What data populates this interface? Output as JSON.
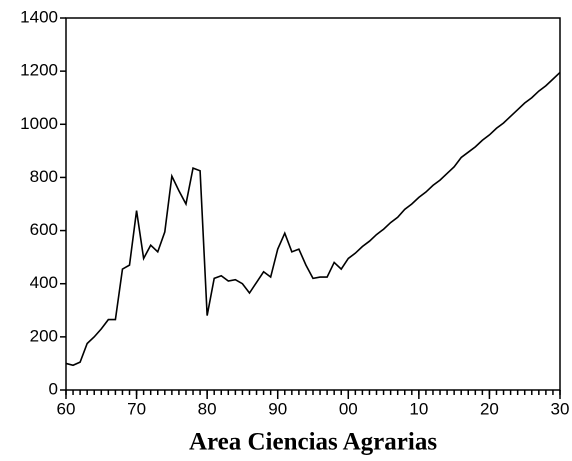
{
  "chart_data": {
    "type": "line",
    "xlabel": "Area Ciencias Agrarias",
    "x": [
      1960,
      1961,
      1962,
      1963,
      1964,
      1965,
      1966,
      1967,
      1968,
      1969,
      1970,
      1971,
      1972,
      1973,
      1974,
      1975,
      1976,
      1977,
      1978,
      1979,
      1980,
      1981,
      1982,
      1983,
      1984,
      1985,
      1986,
      1987,
      1988,
      1989,
      1990,
      1991,
      1992,
      1993,
      1994,
      1995,
      1996,
      1997,
      1998,
      1999,
      2000,
      2001,
      2002,
      2003,
      2004,
      2005,
      2006,
      2007,
      2008,
      2009,
      2010,
      2011,
      2012,
      2013,
      2014,
      2015,
      2016,
      2017,
      2018,
      2019,
      2020,
      2021,
      2022,
      2023,
      2024,
      2025,
      2026,
      2027,
      2028,
      2029,
      2030
    ],
    "values": [
      100,
      93,
      105,
      175,
      200,
      230,
      265,
      265,
      455,
      470,
      675,
      495,
      545,
      520,
      595,
      805,
      750,
      700,
      835,
      825,
      280,
      420,
      430,
      410,
      415,
      400,
      365,
      405,
      445,
      425,
      530,
      590,
      520,
      530,
      470,
      420,
      425,
      425,
      480,
      455,
      495,
      515,
      540,
      560,
      585,
      605,
      630,
      650,
      680,
      700,
      725,
      745,
      770,
      790,
      815,
      840,
      875,
      895,
      915,
      940,
      960,
      985,
      1005,
      1030,
      1055,
      1080,
      1100,
      1125,
      1145,
      1170,
      1195
    ],
    "color": "#000000",
    "xlim": [
      1960,
      2030
    ],
    "xticks": [
      {
        "value": 1960,
        "label": "60"
      },
      {
        "value": 1970,
        "label": "70"
      },
      {
        "value": 1980,
        "label": "80"
      },
      {
        "value": 1990,
        "label": "90"
      },
      {
        "value": 2000,
        "label": "00"
      },
      {
        "value": 2010,
        "label": "10"
      },
      {
        "value": 2020,
        "label": "20"
      },
      {
        "value": 2030,
        "label": "30"
      }
    ],
    "ylim": [
      0,
      1400
    ],
    "yticks": [
      0,
      200,
      400,
      600,
      800,
      1000,
      1200,
      1400
    ]
  }
}
